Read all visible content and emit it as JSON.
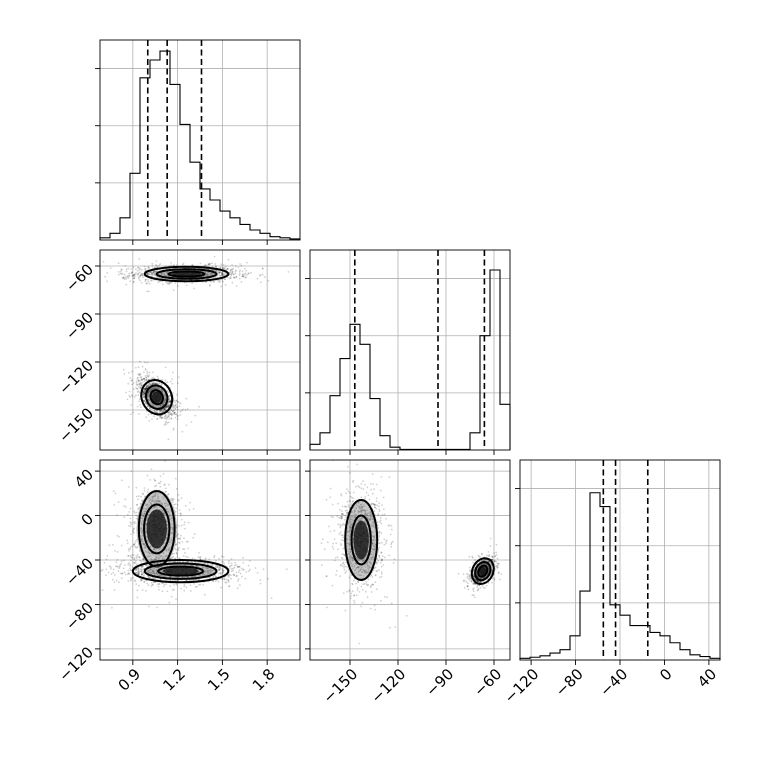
{
  "chart_data": {
    "type": "corner",
    "grid": true,
    "parameters": [
      {
        "id": "p1",
        "range": [
          0.68,
          2.02
        ],
        "ticks": [
          0.9,
          1.2,
          1.5,
          1.8
        ],
        "tick_labels": [
          "0.9",
          "1.2",
          "1.5",
          "1.8"
        ]
      },
      {
        "id": "p2",
        "range": [
          -175,
          -50
        ],
        "ticks": [
          -150,
          -120,
          -90,
          -60
        ],
        "tick_labels": [
          "−150",
          "−120",
          "−90",
          "−60"
        ]
      },
      {
        "id": "p3",
        "range": [
          -130,
          50
        ],
        "ticks": [
          -120,
          -80,
          -40,
          0,
          40
        ],
        "tick_labels": [
          "−120",
          "−80",
          "−40",
          "0",
          "40"
        ]
      }
    ],
    "histograms": [
      {
        "param": "p1",
        "bin_start": 0.68,
        "bin_width": 0.067,
        "counts": [
          0.1,
          0.3,
          1.0,
          3.0,
          7.3,
          8.1,
          8.5,
          7.0,
          5.2,
          3.5,
          2.3,
          1.8,
          1.3,
          1.0,
          0.7,
          0.45,
          0.3,
          0.15,
          0.1,
          0.05
        ],
        "count_max": 9.0,
        "quantiles": [
          1.0,
          1.13,
          1.36
        ]
      },
      {
        "param": "p2",
        "bin_start": -175,
        "bin_width": 6.25,
        "counts": [
          0.2,
          0.6,
          1.9,
          3.2,
          4.4,
          3.7,
          1.8,
          0.5,
          0.1,
          0.02,
          0.02,
          0.02,
          0.02,
          0.02,
          0.02,
          0.02,
          0.6,
          4.0,
          6.3,
          1.6
        ],
        "count_max": 7.0,
        "quantiles": [
          -147,
          -95,
          -66
        ]
      },
      {
        "param": "p3",
        "bin_start": -130,
        "bin_width": 9,
        "counts": [
          0.05,
          0.08,
          0.12,
          0.2,
          0.3,
          0.7,
          2.0,
          4.85,
          4.45,
          1.6,
          1.3,
          1.0,
          1.0,
          0.8,
          0.7,
          0.5,
          0.3,
          0.15,
          0.1,
          0.05
        ],
        "count_max": 5.8,
        "quantiles": [
          -55,
          -44,
          -15
        ]
      }
    ],
    "scatter_panels": [
      {
        "x_param": "p1",
        "y_param": "p2",
        "clusters": [
          {
            "center": [
              1.26,
              -65
            ],
            "spread": [
              0.17,
              2.6
            ],
            "weight": 0.45,
            "contours": [
              [
                0.28,
                4.5
              ],
              [
                0.2,
                3.0
              ],
              [
                0.12,
                1.6
              ]
            ]
          },
          {
            "center": [
              1.06,
              -142
            ],
            "spread": [
              0.055,
              5.5
            ],
            "weight": 0.55,
            "tilt": -0.55,
            "contours": [
              [
                0.1,
                11
              ],
              [
                0.07,
                7.5
              ],
              [
                0.04,
                4.5
              ]
            ]
          }
        ]
      },
      {
        "x_param": "p1",
        "y_param": "p3",
        "clusters": [
          {
            "center": [
              1.06,
              -12
            ],
            "spread": [
              0.07,
              16
            ],
            "weight": 0.5,
            "contours": [
              [
                0.12,
                34
              ],
              [
                0.085,
                22
              ]
            ]
          },
          {
            "center": [
              1.22,
              -50
            ],
            "spread": [
              0.17,
              5
            ],
            "weight": 0.5,
            "contours": [
              [
                0.32,
                10
              ],
              [
                0.24,
                7
              ],
              [
                0.15,
                4
              ]
            ]
          }
        ]
      },
      {
        "x_param": "p2",
        "y_param": "p3",
        "clusters": [
          {
            "center": [
              -143,
              -22
            ],
            "spread": [
              6,
              18
            ],
            "weight": 0.55,
            "contours": [
              [
                10,
                36
              ],
              [
                6,
                22
              ]
            ]
          },
          {
            "center": [
              -67,
              -50
            ],
            "spread": [
              3,
              5
            ],
            "weight": 0.45,
            "tilt": 0.4,
            "contours": [
              [
                6.5,
                12
              ],
              [
                4.5,
                8.5
              ],
              [
                2.6,
                5.2
              ]
            ]
          }
        ]
      }
    ]
  }
}
